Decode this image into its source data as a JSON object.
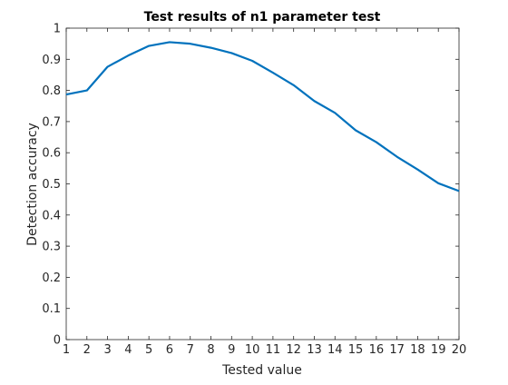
{
  "chart_data": {
    "type": "line",
    "title": "Test results of n1 parameter test",
    "xlabel": "Tested value",
    "ylabel": "Detection accuracy",
    "xlim": [
      1,
      20
    ],
    "ylim": [
      0,
      1
    ],
    "xticks": [
      1,
      2,
      3,
      4,
      5,
      6,
      7,
      8,
      9,
      10,
      11,
      12,
      13,
      14,
      15,
      16,
      17,
      18,
      19,
      20
    ],
    "yticks": [
      0,
      0.1,
      0.2,
      0.3,
      0.4,
      0.5,
      0.6,
      0.7,
      0.8,
      0.9,
      1
    ],
    "ytick_labels": [
      "0",
      "0.1",
      "0.2",
      "0.3",
      "0.4",
      "0.5",
      "0.6",
      "0.7",
      "0.8",
      "0.9",
      "1"
    ],
    "grid": false,
    "series": [
      {
        "color": "#0072bd",
        "x": [
          1,
          2,
          3,
          4,
          5,
          6,
          7,
          8,
          9,
          10,
          11,
          12,
          13,
          14,
          15,
          16,
          17,
          18,
          19,
          20
        ],
        "y": [
          0.787,
          0.8,
          0.876,
          0.912,
          0.943,
          0.955,
          0.95,
          0.937,
          0.92,
          0.895,
          0.857,
          0.817,
          0.766,
          0.728,
          0.672,
          0.634,
          0.587,
          0.546,
          0.502,
          0.477
        ]
      }
    ]
  }
}
